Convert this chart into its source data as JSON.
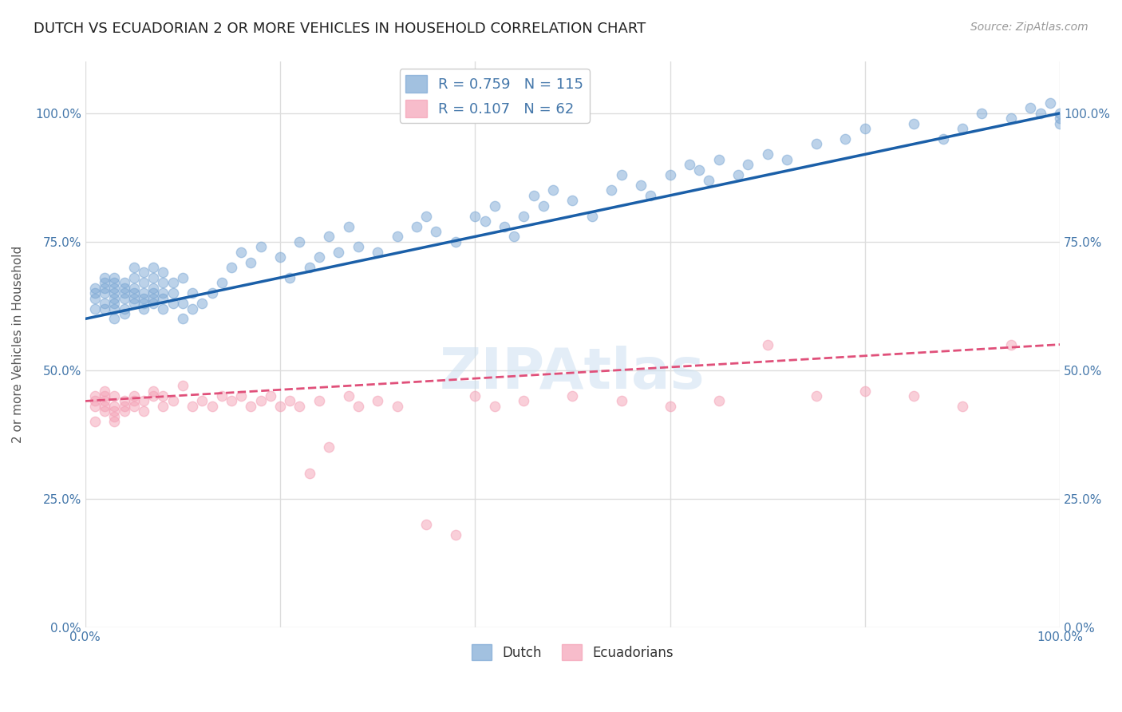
{
  "title": "DUTCH VS ECUADORIAN 2 OR MORE VEHICLES IN HOUSEHOLD CORRELATION CHART",
  "source": "Source: ZipAtlas.com",
  "ylabel": "2 or more Vehicles in Household",
  "xlabel": "",
  "watermark": "ZIPAtlas",
  "legend": {
    "dutch": {
      "R": 0.759,
      "N": 115,
      "color": "#6699cc",
      "label": "Dutch"
    },
    "ecuadorian": {
      "R": 0.107,
      "N": 62,
      "color": "#ff6699",
      "label": "Ecuadorians"
    }
  },
  "ytick_labels": [
    "0.0%",
    "25.0%",
    "50.0%",
    "75.0%",
    "100.0%"
  ],
  "ytick_values": [
    0,
    25,
    50,
    75,
    100
  ],
  "xtick_labels": [
    "0.0%",
    "",
    "",
    "",
    "",
    "100.0%"
  ],
  "xlim": [
    0,
    100
  ],
  "ylim": [
    0,
    110
  ],
  "dutch_color": "#7BA7D4",
  "ecuadorian_color": "#F4A0B5",
  "dutch_line_color": "#1a5fa8",
  "ecuadorian_line_color": "#e0507a",
  "dutch_scatter_x": [
    1,
    1,
    1,
    1,
    2,
    2,
    2,
    2,
    2,
    2,
    3,
    3,
    3,
    3,
    3,
    3,
    3,
    3,
    4,
    4,
    4,
    4,
    4,
    4,
    5,
    5,
    5,
    5,
    5,
    5,
    6,
    6,
    6,
    6,
    6,
    6,
    7,
    7,
    7,
    7,
    7,
    7,
    8,
    8,
    8,
    8,
    8,
    9,
    9,
    9,
    10,
    10,
    10,
    11,
    11,
    12,
    13,
    14,
    15,
    16,
    17,
    18,
    20,
    21,
    22,
    23,
    24,
    25,
    26,
    27,
    28,
    30,
    32,
    34,
    35,
    36,
    38,
    40,
    41,
    42,
    43,
    44,
    45,
    46,
    47,
    48,
    50,
    52,
    54,
    55,
    57,
    58,
    60,
    62,
    63,
    64,
    65,
    67,
    68,
    70,
    72,
    75,
    78,
    80,
    85,
    88,
    90,
    92,
    95,
    97,
    98,
    99,
    100,
    100,
    100
  ],
  "dutch_scatter_y": [
    62,
    64,
    65,
    66,
    62,
    63,
    65,
    66,
    67,
    68,
    60,
    62,
    63,
    64,
    65,
    66,
    67,
    68,
    61,
    62,
    64,
    65,
    66,
    67,
    63,
    64,
    65,
    66,
    68,
    70,
    62,
    63,
    64,
    65,
    67,
    69,
    63,
    64,
    65,
    66,
    68,
    70,
    62,
    64,
    65,
    67,
    69,
    63,
    65,
    67,
    60,
    63,
    68,
    62,
    65,
    63,
    65,
    67,
    70,
    73,
    71,
    74,
    72,
    68,
    75,
    70,
    72,
    76,
    73,
    78,
    74,
    73,
    76,
    78,
    80,
    77,
    75,
    80,
    79,
    82,
    78,
    76,
    80,
    84,
    82,
    85,
    83,
    80,
    85,
    88,
    86,
    84,
    88,
    90,
    89,
    87,
    91,
    88,
    90,
    92,
    91,
    94,
    95,
    97,
    98,
    95,
    97,
    100,
    99,
    101,
    100,
    102,
    100,
    98,
    99
  ],
  "ecuadorian_scatter_x": [
    1,
    1,
    1,
    1,
    2,
    2,
    2,
    2,
    2,
    3,
    3,
    3,
    3,
    3,
    4,
    4,
    4,
    5,
    5,
    5,
    6,
    6,
    7,
    7,
    8,
    8,
    9,
    10,
    11,
    12,
    13,
    14,
    15,
    16,
    17,
    18,
    19,
    20,
    21,
    22,
    23,
    24,
    25,
    27,
    28,
    30,
    32,
    35,
    38,
    40,
    42,
    45,
    50,
    55,
    60,
    65,
    70,
    75,
    80,
    85,
    90,
    95
  ],
  "ecuadorian_scatter_y": [
    43,
    44,
    45,
    40,
    42,
    43,
    44,
    45,
    46,
    41,
    43,
    45,
    40,
    42,
    42,
    43,
    44,
    43,
    44,
    45,
    42,
    44,
    45,
    46,
    43,
    45,
    44,
    47,
    43,
    44,
    43,
    45,
    44,
    45,
    43,
    44,
    45,
    43,
    44,
    43,
    30,
    44,
    35,
    45,
    43,
    44,
    43,
    20,
    18,
    45,
    43,
    44,
    45,
    44,
    43,
    44,
    55,
    45,
    46,
    45,
    43,
    55
  ],
  "dutch_line": {
    "x0": 0,
    "y0": 60,
    "x1": 100,
    "y1": 100
  },
  "ecuadorian_line": {
    "x0": 0,
    "y0": 44,
    "x1": 100,
    "y1": 55
  },
  "ecuadorian_line_dashed": true,
  "title_fontsize": 13,
  "source_fontsize": 10,
  "axis_label_color": "#4477aa",
  "tick_label_color": "#4477aa",
  "background_color": "#ffffff",
  "grid_color": "#dddddd",
  "marker_size": 80,
  "marker_alpha": 0.5
}
